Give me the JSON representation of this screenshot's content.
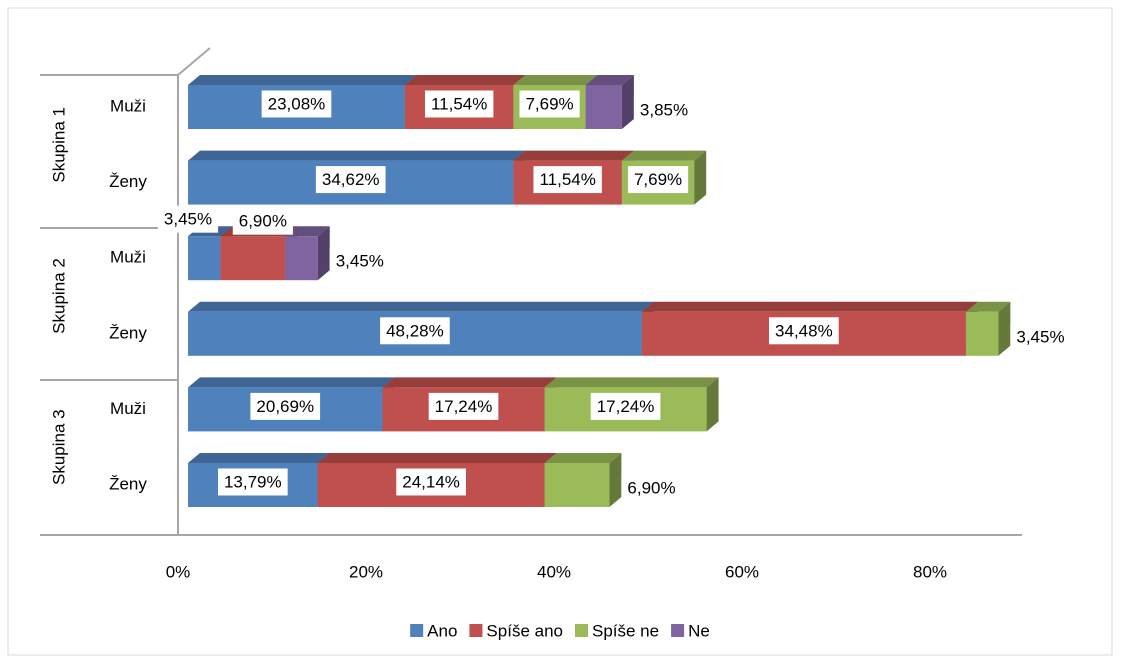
{
  "chart_data": {
    "type": "bar",
    "orientation": "horizontal",
    "stacked": true,
    "groups": [
      "Skupina 1",
      "Skupina 2",
      "Skupina 3"
    ],
    "categories": [
      "Muži",
      "Ženy",
      "Muži",
      "Ženy",
      "Muži",
      "Ženy"
    ],
    "series": [
      {
        "name": "Ano",
        "color": "#4f81bd",
        "values": [
          23.08,
          34.62,
          3.45,
          48.28,
          20.69,
          13.79
        ],
        "value_labels": [
          "23,08%",
          "34,62%",
          "3,45%",
          "48,28%",
          "20,69%",
          "13,79%"
        ]
      },
      {
        "name": "Spíše ano",
        "color": "#c0504d",
        "values": [
          11.54,
          11.54,
          6.9,
          34.48,
          17.24,
          24.14
        ],
        "value_labels": [
          "11,54%",
          "11,54%",
          "6,90%",
          "34,48%",
          "17,24%",
          "24,14%"
        ]
      },
      {
        "name": "Spíše ne",
        "color": "#9bbb59",
        "values": [
          7.69,
          7.69,
          null,
          3.45,
          17.24,
          6.9
        ],
        "value_labels": [
          "7,69%",
          "7,69%",
          null,
          "3,45%",
          "17,24%",
          "6,90%"
        ]
      },
      {
        "name": "Ne",
        "color": "#8064a2",
        "values": [
          3.85,
          null,
          3.45,
          null,
          null,
          null
        ],
        "value_labels": [
          "3,85%",
          null,
          "3,45%",
          null,
          null,
          null
        ]
      }
    ],
    "xlim": [
      0,
      90
    ],
    "xticks": [
      {
        "value": 0,
        "label": "0%"
      },
      {
        "value": 20,
        "label": "20%"
      },
      {
        "value": 40,
        "label": "40%"
      },
      {
        "value": 60,
        "label": "60%"
      },
      {
        "value": 80,
        "label": "80%"
      }
    ],
    "legend": "bottom"
  }
}
